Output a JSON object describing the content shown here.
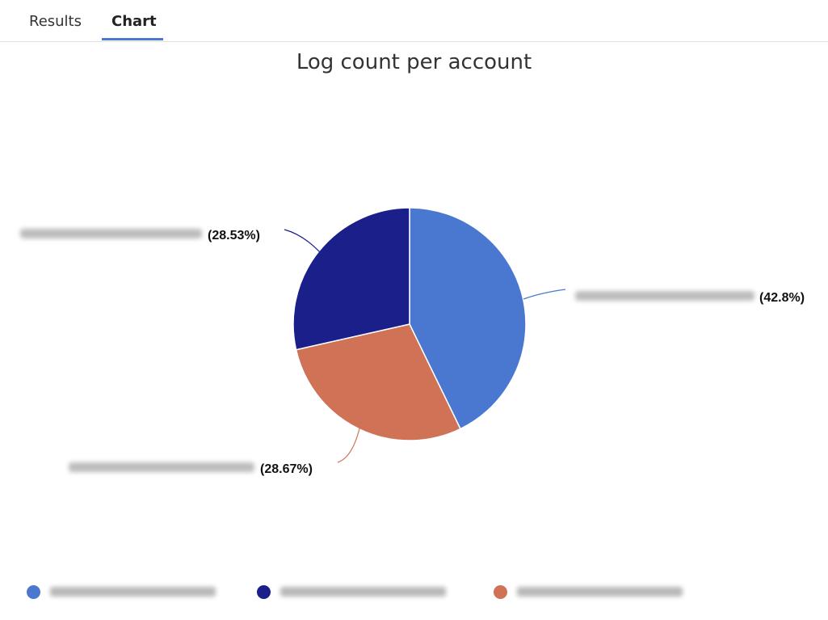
{
  "tabs": [
    {
      "label": "Results",
      "active": false
    },
    {
      "label": "Chart",
      "active": true
    }
  ],
  "chart_data": {
    "type": "pie",
    "title": "Log count per account",
    "slices": [
      {
        "label_redacted": true,
        "percent": 42.8,
        "percent_label": "(42.8%)",
        "color": "#4a78d0"
      },
      {
        "label_redacted": true,
        "percent": 28.67,
        "percent_label": "(28.67%)",
        "color": "#d07256"
      },
      {
        "label_redacted": true,
        "percent": 28.53,
        "percent_label": "(28.53%)",
        "color": "#1a1f8a"
      }
    ],
    "legend": "bottom"
  }
}
